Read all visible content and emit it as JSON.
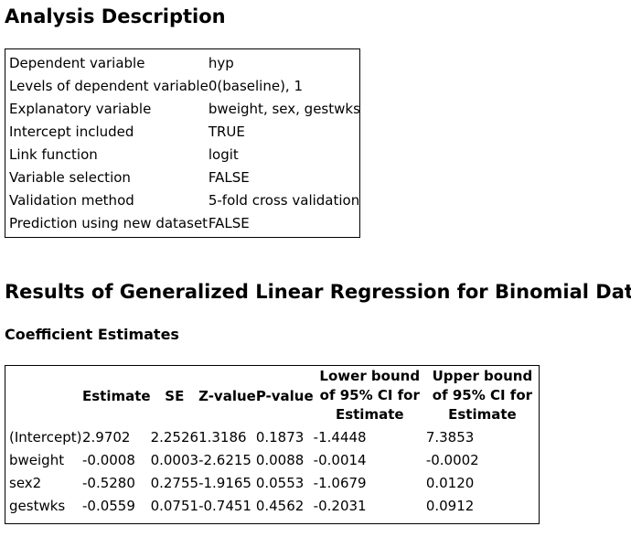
{
  "analysis": {
    "title": "Analysis Description",
    "rows": [
      {
        "label": "Dependent variable",
        "value": "hyp"
      },
      {
        "label": "Levels of dependent variable",
        "value": "0(baseline), 1"
      },
      {
        "label": "Explanatory variable",
        "value": "bweight, sex, gestwks"
      },
      {
        "label": "Intercept included",
        "value": "TRUE"
      },
      {
        "label": "Link function",
        "value": "logit"
      },
      {
        "label": "Variable selection",
        "value": "FALSE"
      },
      {
        "label": "Validation method",
        "value": "5-fold cross validation"
      },
      {
        "label": "Prediction using new dataset",
        "value": "FALSE"
      }
    ]
  },
  "results": {
    "title": "Results of Generalized Linear Regression for Binomial Data",
    "coef_title": "Coefficient Estimates",
    "columns": [
      "",
      "Estimate",
      "SE",
      "Z-value",
      "P-value",
      "Lower bound of 95% CI for Estimate",
      "Upper bound of 95% CI for Estimate"
    ],
    "rows": [
      [
        "(Intercept)",
        "2.9702",
        "2.2526",
        "1.3186",
        "0.1873",
        "-1.4448",
        "7.3853"
      ],
      [
        "bweight",
        "-0.0008",
        "0.0003",
        "-2.6215",
        "0.0088",
        "-0.0014",
        "-0.0002"
      ],
      [
        "sex2",
        "-0.5280",
        "0.2755",
        "-1.9165",
        "0.0553",
        "-1.0679",
        "0.0120"
      ],
      [
        "gestwks",
        "-0.0559",
        "0.0751",
        "-0.7451",
        "0.4562",
        "-0.2031",
        "0.0912"
      ]
    ]
  }
}
